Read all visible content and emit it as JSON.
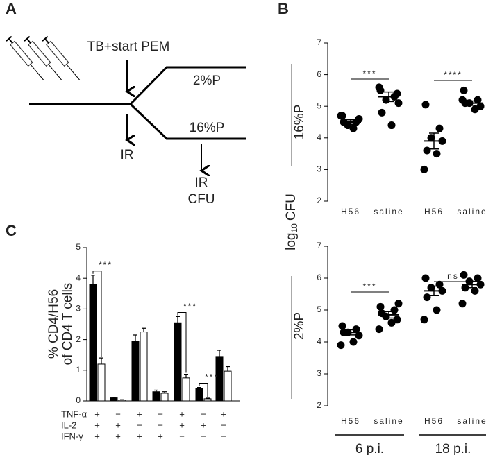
{
  "panel_labels": [
    "A",
    "B",
    "C"
  ],
  "diagram": {
    "event": "TB+start PEM",
    "branches": [
      "2%P",
      "16%P"
    ],
    "readouts": [
      "IR",
      "IR",
      "CFU"
    ]
  },
  "shared_ylabel": {
    "base": "log",
    "subscript": "10",
    "unit": "CFU"
  },
  "chart_data": [
    {
      "type": "dot",
      "ylabel": "16%P",
      "categories": [
        "H56",
        "saline",
        "H56",
        "saline"
      ],
      "points": [
        [
          4.7,
          4.5,
          4.4,
          4.6,
          4.5,
          4.3,
          4.7
        ],
        [
          5.5,
          5.3,
          5.2,
          5.4,
          4.8,
          4.4,
          5.6,
          5.1
        ],
        [
          5.05,
          4.3,
          4.0,
          3.9,
          3.6,
          3.5,
          3.0
        ],
        [
          5.5,
          5.2,
          5.1,
          5.0,
          5.1,
          4.9,
          5.2
        ]
      ],
      "means": [
        4.5,
        5.3,
        3.9,
        5.1
      ],
      "errors": [
        0.07,
        0.15,
        0.25,
        0.07
      ],
      "ylim": [
        2,
        7
      ],
      "yticks": [
        2,
        3,
        4,
        5,
        6,
        7
      ],
      "color": "#000000",
      "annotations": [
        "***",
        "****"
      ]
    },
    {
      "type": "dot",
      "ylabel": "2%P",
      "categories": [
        "H56",
        "saline",
        "H56",
        "saline"
      ],
      "points": [
        [
          4.5,
          4.4,
          4.3,
          4.2,
          4.3,
          4.0,
          3.9
        ],
        [
          5.1,
          5.0,
          4.8,
          4.7,
          4.9,
          4.6,
          4.4,
          5.2
        ],
        [
          6.0,
          5.8,
          5.7,
          5.6,
          5.4,
          5.0,
          4.7
        ],
        [
          6.1,
          6.0,
          5.9,
          5.8,
          5.7,
          5.6,
          5.2
        ]
      ],
      "means": [
        4.3,
        4.85,
        5.6,
        5.8
      ],
      "errors": [
        0.08,
        0.1,
        0.15,
        0.1
      ],
      "ylim": [
        2,
        7
      ],
      "yticks": [
        2,
        3,
        4,
        5,
        6,
        7
      ],
      "color": "#000000",
      "annotations": [
        "***",
        "ns"
      ],
      "groups": [
        "6 p.i.",
        "18 p.i."
      ]
    },
    {
      "type": "bar",
      "ylabel": [
        "% CD4/H56",
        "of CD4 T cells"
      ],
      "rows": [
        {
          "name": "TNF-α",
          "signs": [
            "+",
            "−",
            "+",
            "−",
            "+",
            "−",
            "+"
          ]
        },
        {
          "name": "IL-2",
          "signs": [
            "+",
            "+",
            "−",
            "−",
            "+",
            "+",
            "−"
          ]
        },
        {
          "name": "IFN-γ",
          "signs": [
            "+",
            "+",
            "+",
            "+",
            "−",
            "−",
            "−"
          ]
        }
      ],
      "series": [
        {
          "color": "#000000",
          "values": [
            3.8,
            0.1,
            1.95,
            0.3,
            2.55,
            0.4,
            1.45
          ],
          "errors": [
            0.3,
            0.02,
            0.2,
            0.05,
            0.2,
            0.04,
            0.2
          ]
        },
        {
          "color": "#ffffff",
          "values": [
            1.2,
            0.03,
            2.25,
            0.25,
            0.75,
            0.07,
            0.97
          ],
          "errors": [
            0.2,
            0.01,
            0.12,
            0.05,
            0.12,
            0.02,
            0.15
          ]
        }
      ],
      "ylim": [
        0,
        5
      ],
      "yticks": [
        0,
        1,
        2,
        3,
        4,
        5
      ],
      "annotations": [
        "***",
        "***",
        "***"
      ]
    }
  ]
}
